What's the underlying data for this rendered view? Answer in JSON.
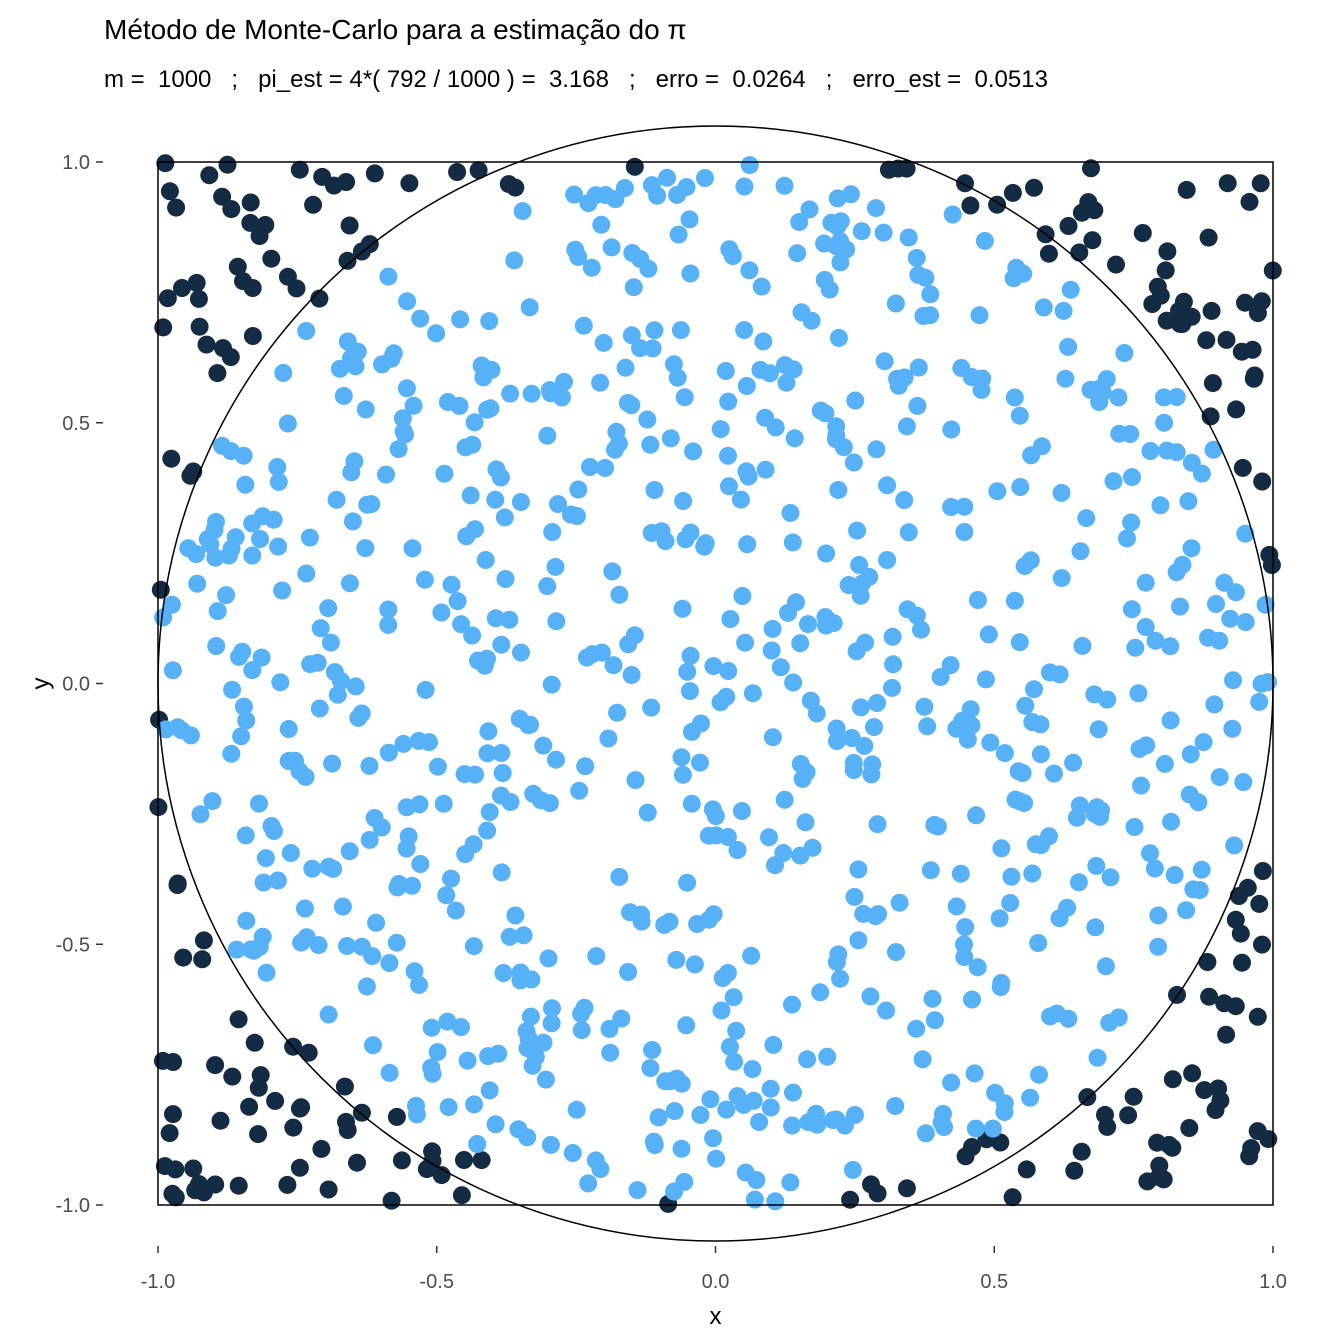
{
  "chart_data": {
    "type": "scatter",
    "title": "Método de Monte-Carlo para a estimação do π",
    "subtitle": "m =  1000   ;   pi_est = 4*( 792 / 1000 ) =  3.168   ;   erro =  0.0264   ;   erro_est =  0.0513",
    "xlabel": "x",
    "ylabel": "y",
    "xlim": [
      -1,
      1
    ],
    "ylim": [
      -1,
      1
    ],
    "x_ticks": [
      -1.0,
      -0.5,
      0.0,
      0.5,
      1.0
    ],
    "y_ticks": [
      -1.0,
      -0.5,
      0.0,
      0.5,
      1.0
    ],
    "x_tick_labels": [
      "-1.0",
      "-0.5",
      "0.0",
      "0.5",
      "1.0"
    ],
    "y_tick_labels": [
      "-1.0",
      "-0.5",
      "0.0",
      "0.5",
      "1.0"
    ],
    "grid": false,
    "legend": "none",
    "shapes": [
      {
        "type": "square",
        "x_range": [
          -1,
          1
        ],
        "y_range": [
          -1,
          1
        ]
      },
      {
        "type": "circle",
        "center": [
          0,
          0
        ],
        "radius": 1
      }
    ],
    "colors": {
      "inside": "#56B1F7",
      "outside": "#132B43",
      "frame": "#000000"
    },
    "m": 1000,
    "inside_count": 792,
    "outside_count": 208,
    "series": [
      {
        "group": "inside",
        "count": 792
      },
      {
        "group": "outside",
        "count": 208
      }
    ]
  }
}
